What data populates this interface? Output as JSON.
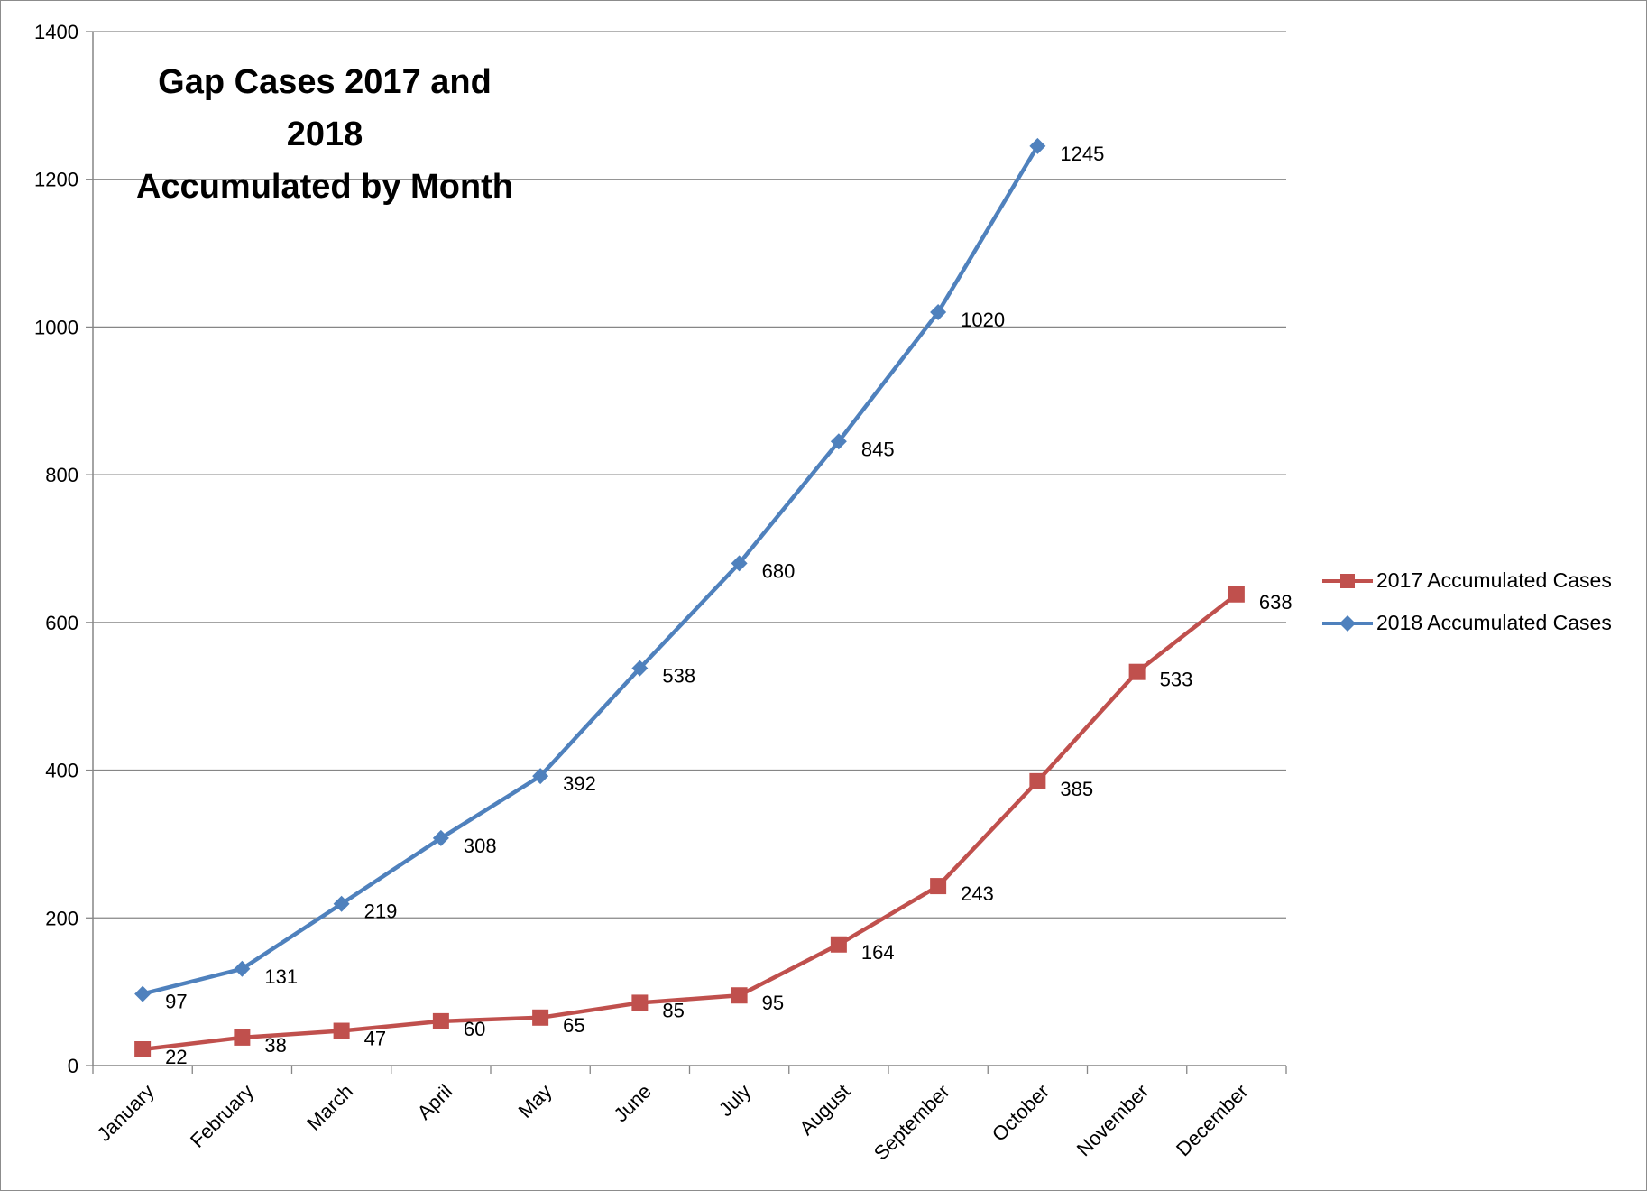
{
  "chart_data": {
    "type": "line",
    "title": "Gap Cases 2017 and 2018 Accumulated by Month",
    "title_lines": [
      "Gap Cases 2017 and 2018",
      "Accumulated by Month"
    ],
    "categories": [
      "January",
      "February",
      "March",
      "April",
      "May",
      "June",
      "July",
      "August",
      "September",
      "October",
      "November",
      "December"
    ],
    "ylim": [
      0,
      1400
    ],
    "yticks": [
      0,
      200,
      400,
      600,
      800,
      1000,
      1200,
      1400
    ],
    "grid": true,
    "legend_position": "right",
    "series": [
      {
        "name": "2017 Accumulated Cases",
        "marker": "square",
        "color": "#c0504d",
        "values": [
          22,
          38,
          47,
          60,
          65,
          85,
          95,
          164,
          243,
          385,
          533,
          638
        ]
      },
      {
        "name": "2018 Accumulated Cases",
        "marker": "diamond",
        "color": "#4f81bd",
        "values": [
          97,
          131,
          219,
          308,
          392,
          538,
          680,
          845,
          1020,
          1245,
          null,
          null
        ]
      }
    ]
  }
}
